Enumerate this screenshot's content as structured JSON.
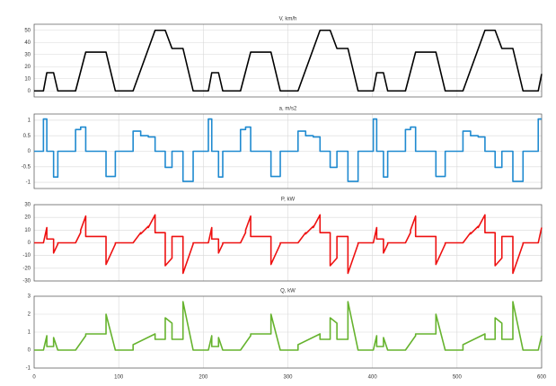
{
  "chart_data": [
    {
      "type": "line",
      "title": "V, km/h",
      "color": "#000000",
      "step": false,
      "grid": true,
      "x": [
        0,
        11,
        15,
        23,
        28,
        49,
        61,
        85,
        96,
        117,
        143,
        155,
        163,
        176,
        188,
        206,
        210,
        218,
        223,
        244,
        256,
        280,
        291,
        312,
        338,
        350,
        358,
        371,
        383,
        401,
        405,
        413,
        418,
        439,
        451,
        475,
        486,
        507,
        533,
        545,
        553,
        566,
        578,
        596,
        600
      ],
      "values": [
        0,
        0,
        15,
        15,
        0,
        0,
        32,
        32,
        0,
        0,
        50,
        50,
        35,
        35,
        0,
        0,
        15,
        15,
        0,
        0,
        32,
        32,
        0,
        0,
        50,
        50,
        35,
        35,
        0,
        0,
        15,
        15,
        0,
        0,
        32,
        32,
        0,
        0,
        50,
        50,
        35,
        35,
        0,
        0,
        14
      ],
      "xlim": [
        0,
        600
      ],
      "xticks": [
        0,
        100,
        200,
        300,
        400,
        500,
        600
      ],
      "ylim": [
        -5,
        55
      ],
      "yticks": [
        0,
        10,
        20,
        30,
        40,
        50
      ]
    },
    {
      "type": "line",
      "title": "a, m/s2",
      "color": "#1f8ad0",
      "step": true,
      "grid": true,
      "x": [
        0,
        11,
        15,
        23,
        28,
        49,
        55,
        61,
        85,
        96,
        117,
        126,
        135,
        143,
        155,
        163,
        176,
        188,
        206,
        210,
        218,
        223,
        244,
        250,
        256,
        280,
        291,
        312,
        321,
        330,
        338,
        350,
        358,
        371,
        383,
        401,
        405,
        413,
        418,
        439,
        445,
        451,
        475,
        486,
        507,
        516,
        525,
        533,
        545,
        553,
        566,
        578,
        596
      ],
      "values": [
        0,
        1.04,
        0,
        -0.83,
        0,
        0.7,
        0.78,
        0,
        -0.81,
        0,
        0.65,
        0.5,
        0.46,
        0,
        -0.52,
        0,
        -0.97,
        0,
        1.04,
        0,
        -0.83,
        0,
        0.7,
        0.78,
        0,
        -0.81,
        0,
        0.65,
        0.5,
        0.46,
        0,
        -0.52,
        0,
        -0.97,
        0,
        1.04,
        0,
        -0.83,
        0,
        0.7,
        0.78,
        0,
        -0.81,
        0,
        0.65,
        0.5,
        0.46,
        0,
        -0.52,
        0,
        -0.97,
        0,
        1.04
      ],
      "xlim": [
        0,
        600
      ],
      "xticks": [
        0,
        100,
        200,
        300,
        400,
        500,
        600
      ],
      "ylim": [
        -1.2,
        1.2
      ],
      "yticks": [
        -1,
        -0.5,
        0,
        0.5,
        1
      ]
    },
    {
      "type": "line",
      "title": "P, kW",
      "color": "#ee1111",
      "step": false,
      "grid": true,
      "x": [
        0,
        11,
        15,
        15,
        23,
        23,
        28,
        28,
        49,
        55,
        55,
        61,
        61,
        85,
        85,
        96,
        96,
        117,
        126,
        126,
        135,
        135,
        143,
        143,
        155,
        155,
        163,
        163,
        176,
        176,
        188,
        188,
        206,
        210,
        210,
        218,
        218,
        223,
        223,
        244,
        250,
        250,
        256,
        256,
        280,
        280,
        291,
        291,
        312,
        321,
        321,
        330,
        330,
        338,
        338,
        350,
        350,
        358,
        358,
        371,
        371,
        383,
        383,
        401,
        405,
        405,
        413,
        413,
        418,
        418,
        439,
        445,
        445,
        451,
        451,
        475,
        475,
        486,
        486,
        507,
        516,
        516,
        525,
        525,
        533,
        533,
        545,
        545,
        553,
        553,
        566,
        566,
        578,
        578,
        596,
        600
      ],
      "values": [
        0,
        0,
        12,
        3,
        3,
        -8,
        -1,
        0,
        0,
        8,
        10,
        21,
        5,
        5,
        -17,
        -1,
        0,
        0,
        8,
        7,
        13,
        12,
        22,
        8,
        8,
        -18,
        -12,
        5,
        5,
        -24,
        -1,
        0,
        0,
        12,
        3,
        3,
        -8,
        -1,
        0,
        0,
        8,
        10,
        21,
        5,
        5,
        -17,
        -1,
        0,
        0,
        8,
        7,
        13,
        12,
        22,
        8,
        8,
        -18,
        -12,
        5,
        5,
        -24,
        -1,
        0,
        0,
        12,
        3,
        3,
        -8,
        -1,
        0,
        0,
        8,
        10,
        21,
        5,
        5,
        -17,
        -1,
        0,
        0,
        8,
        7,
        13,
        12,
        22,
        8,
        8,
        -18,
        -12,
        5,
        5,
        -24,
        -1,
        0,
        0,
        12
      ],
      "xlim": [
        0,
        600
      ],
      "xticks": [
        0,
        100,
        200,
        300,
        400,
        500,
        600
      ],
      "ylim": [
        -30,
        30
      ],
      "yticks": [
        -30,
        -20,
        -10,
        0,
        10,
        20,
        30
      ]
    },
    {
      "type": "line",
      "title": "Q, kW",
      "color": "#66b32e",
      "step": false,
      "grid": true,
      "x": [
        0,
        11,
        15,
        15,
        23,
        23,
        28,
        49,
        61,
        61,
        85,
        85,
        96,
        117,
        117,
        143,
        143,
        155,
        155,
        163,
        163,
        176,
        176,
        188,
        206,
        210,
        210,
        218,
        218,
        223,
        244,
        256,
        256,
        280,
        280,
        291,
        312,
        312,
        338,
        338,
        350,
        350,
        358,
        358,
        371,
        371,
        383,
        401,
        405,
        405,
        413,
        413,
        418,
        439,
        451,
        451,
        475,
        475,
        486,
        507,
        507,
        533,
        533,
        545,
        545,
        553,
        553,
        566,
        566,
        578,
        596,
        600
      ],
      "values": [
        0,
        0,
        0.8,
        0.2,
        0.2,
        0.7,
        0,
        0,
        0.8,
        0.9,
        0.9,
        2,
        0,
        0,
        0.3,
        0.9,
        0.6,
        0.6,
        1.8,
        1.5,
        0.6,
        0.6,
        2.7,
        0,
        0,
        0.8,
        0.2,
        0.2,
        0.7,
        0,
        0,
        0.8,
        0.9,
        0.9,
        2,
        0,
        0,
        0.3,
        0.9,
        0.6,
        0.6,
        1.8,
        1.5,
        0.6,
        0.6,
        2.7,
        0,
        0,
        0.8,
        0.2,
        0.2,
        0.7,
        0,
        0,
        0.8,
        0.9,
        0.9,
        2,
        0,
        0,
        0.3,
        0.9,
        0.6,
        0.6,
        1.8,
        1.5,
        0.6,
        0.6,
        2.7,
        0,
        0,
        0.8
      ],
      "xlim": [
        0,
        600
      ],
      "xticks": [
        0,
        100,
        200,
        300,
        400,
        500,
        600
      ],
      "ylim": [
        -1,
        3
      ],
      "yticks": [
        -1,
        0,
        1,
        2,
        3
      ],
      "show_xtick_labels": true
    }
  ]
}
